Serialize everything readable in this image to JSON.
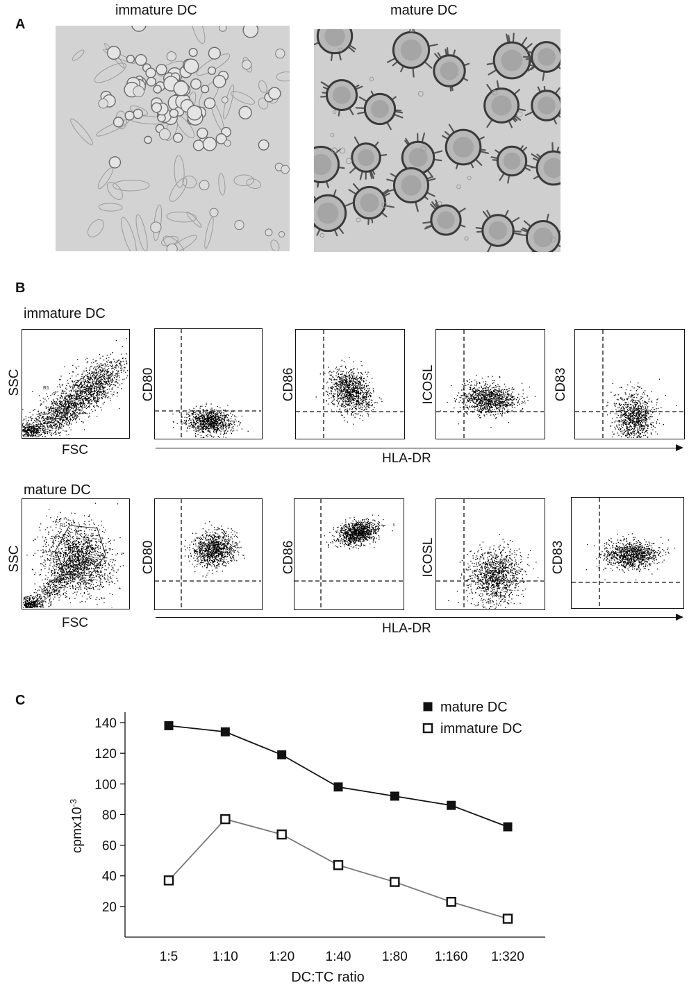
{
  "panel_a": {
    "letter": "A",
    "images": [
      {
        "caption": "immature DC"
      },
      {
        "caption": "mature DC"
      }
    ]
  },
  "panel_b": {
    "letter": "B",
    "x_axis_label": "HLA-DR",
    "rows": [
      {
        "label": "immature DC",
        "gate_plot": {
          "ylabel": "SSC",
          "xlabel": "FSC",
          "gate": "R1"
        },
        "plots": [
          "CD80",
          "CD86",
          "ICOSL",
          "CD83"
        ]
      },
      {
        "label": "mature DC",
        "gate_plot": {
          "ylabel": "SSC",
          "xlabel": "FSC",
          "gate": "R1"
        },
        "plots": [
          "CD80",
          "CD86",
          "ICOSL",
          "CD83"
        ]
      }
    ]
  },
  "panel_c": {
    "letter": "C",
    "chart_data": {
      "type": "line",
      "xlabel": "DC:TC ratio",
      "ylabel": "cpmx10",
      "ylabel_sup": "-3",
      "categories": [
        "1:5",
        "1:10",
        "1:20",
        "1:40",
        "1:80",
        "1:160",
        "1:320"
      ],
      "yticks": [
        20,
        40,
        60,
        80,
        100,
        120,
        140
      ],
      "ylim": [
        0,
        145
      ],
      "legend_position": "top-right",
      "series": [
        {
          "name": "mature DC",
          "marker": "filled-square",
          "color": "#111111",
          "values": [
            138,
            134,
            119,
            98,
            92,
            86,
            72
          ]
        },
        {
          "name": "immature DC",
          "marker": "open-square",
          "color": "#777777",
          "values": [
            37,
            77,
            67,
            47,
            36,
            23,
            12
          ]
        }
      ]
    }
  }
}
